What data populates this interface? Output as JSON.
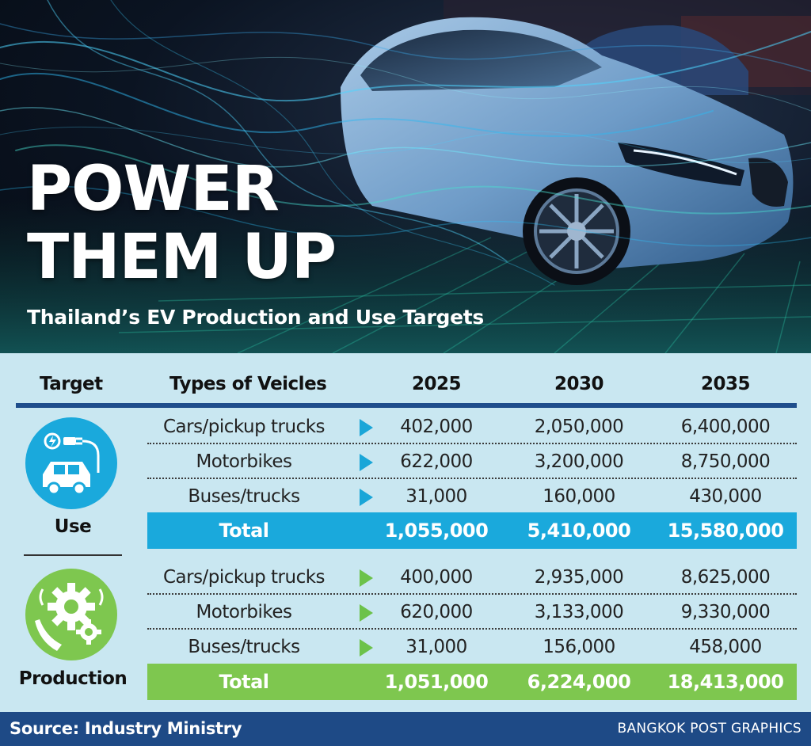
{
  "hero": {
    "headline_line1": "POWER",
    "headline_line2": "THEM UP",
    "subtitle": "Thailand’s EV Production and Use Targets"
  },
  "table": {
    "headers": {
      "target": "Target",
      "types": "Types of Veicles",
      "y2025": "2025",
      "y2030": "2030",
      "y2035": "2035"
    },
    "use": {
      "label": "Use",
      "icon": "electric-car-charging-icon",
      "rows": [
        {
          "type": "Cars/pickup trucks",
          "y2025": "402,000",
          "y2030": "2,050,000",
          "y2035": "6,400,000"
        },
        {
          "type": "Motorbikes",
          "y2025": "622,000",
          "y2030": "3,200,000",
          "y2035": "8,750,000"
        },
        {
          "type": "Buses/trucks",
          "y2025": "31,000",
          "y2030": "160,000",
          "y2035": "430,000"
        }
      ],
      "total": {
        "label": "Total",
        "y2025": "1,055,000",
        "y2030": "5,410,000",
        "y2035": "15,580,000"
      }
    },
    "production": {
      "label": "Production",
      "icon": "gears-hand-icon",
      "rows": [
        {
          "type": "Cars/pickup trucks",
          "y2025": "400,000",
          "y2030": "2,935,000",
          "y2035": "8,625,000"
        },
        {
          "type": "Motorbikes",
          "y2025": "620,000",
          "y2030": "3,133,000",
          "y2035": "9,330,000"
        },
        {
          "type": "Buses/trucks",
          "y2025": "31,000",
          "y2030": "156,000",
          "y2035": "458,000"
        }
      ],
      "total": {
        "label": "Total",
        "y2025": "1,051,000",
        "y2030": "6,224,000",
        "y2035": "18,413,000"
      }
    }
  },
  "footer": {
    "source": "Source: Industry Ministry",
    "credit": "BANGKOK POST GRAPHICS"
  },
  "colors": {
    "use_accent": "#1aa9dc",
    "production_accent": "#7ec74f",
    "footer_bg": "#1e4a86",
    "table_bg": "#c9e7f1"
  }
}
